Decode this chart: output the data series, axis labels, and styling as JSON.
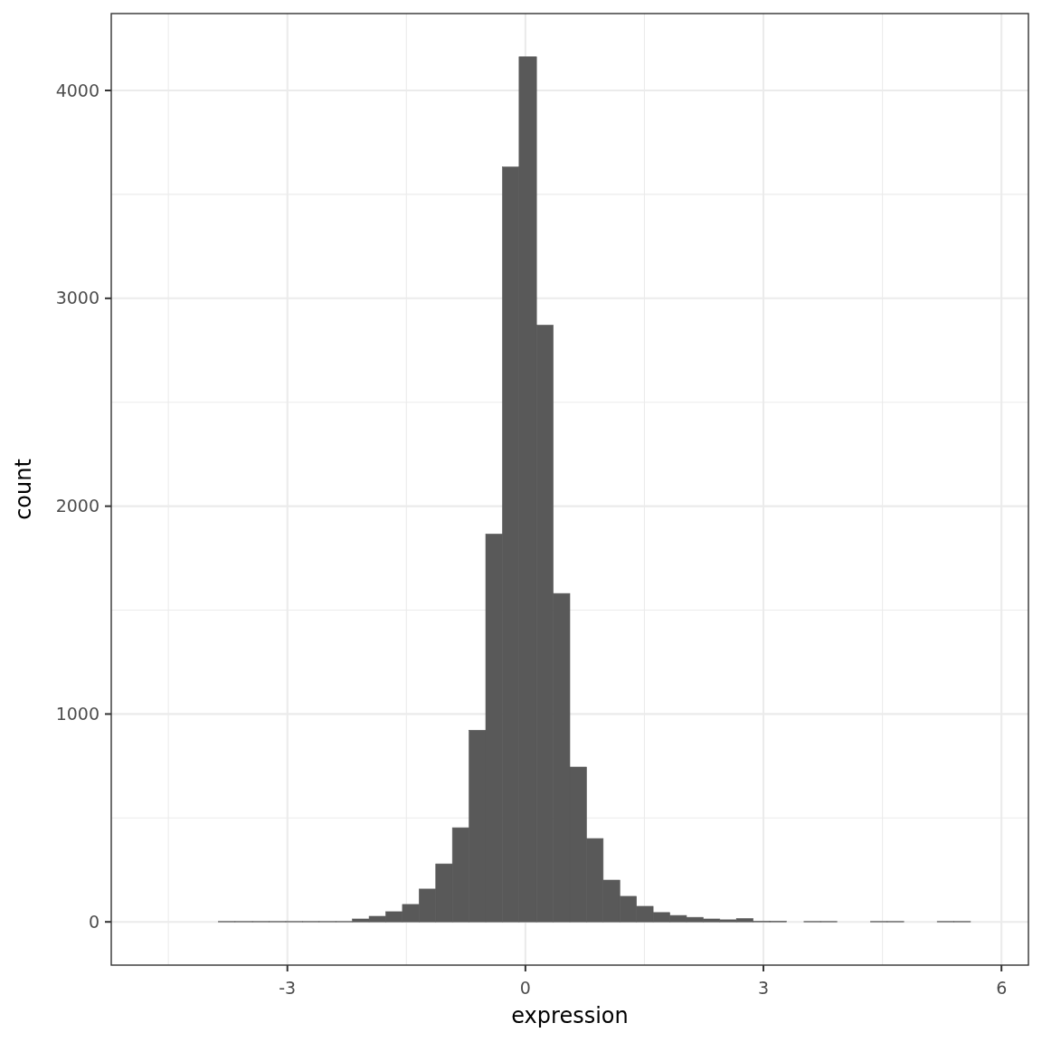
{
  "chart_data": {
    "type": "histogram",
    "xlabel": "expression",
    "ylabel": "count",
    "bins": [
      -3.87,
      -3.66,
      -3.44,
      -3.23,
      -3.02,
      -2.81,
      -2.6,
      -2.39,
      -2.18,
      -1.97,
      -1.76,
      -1.55,
      -1.34,
      -1.13,
      -0.92,
      -0.71,
      -0.5,
      -0.29,
      -0.08,
      0.14,
      0.35,
      0.56,
      0.77,
      0.98,
      1.19,
      1.4,
      1.61,
      1.82,
      2.03,
      2.24,
      2.45,
      2.66,
      2.87,
      3.08,
      3.29,
      3.51,
      3.72,
      3.93,
      4.35,
      4.56,
      4.77,
      5.19,
      5.4,
      5.61
    ],
    "values": [
      2,
      2,
      2,
      2,
      2,
      2,
      2,
      2,
      14,
      27,
      49,
      84,
      158,
      279,
      453,
      922,
      1866,
      3632,
      4162,
      2871,
      1580,
      745,
      401,
      201,
      123,
      75,
      45,
      31,
      22,
      14,
      10,
      16,
      3,
      3,
      0,
      2,
      2,
      0,
      2,
      2,
      0,
      2,
      2
    ],
    "color": "#595959",
    "xlim": [
      -5.22,
      6.34
    ],
    "ylim": [
      -208,
      4370
    ],
    "xticks": [
      {
        "value": -4.5,
        "label": null
      },
      -3,
      {
        "value": -1.5,
        "label": null
      },
      0,
      {
        "value": 1.5,
        "label": null
      },
      3,
      {
        "value": 4.5,
        "label": null
      },
      6
    ],
    "yticks": [
      0,
      {
        "value": 500,
        "label": null
      },
      1000,
      {
        "value": 1500,
        "label": null
      },
      2000,
      {
        "value": 2500,
        "label": null
      },
      3000,
      {
        "value": 3500,
        "label": null
      },
      4000
    ],
    "grid": true
  }
}
